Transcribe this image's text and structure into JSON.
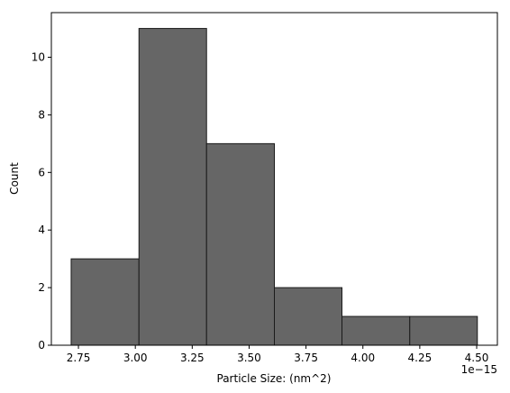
{
  "chart_data": {
    "type": "histogram",
    "x_label": "Particle Size: (nm^2)",
    "y_label": "Count",
    "x_offset_text": "1e−15",
    "bins": [
      2.718,
      3.016,
      3.313,
      3.611,
      3.908,
      4.206,
      4.503
    ],
    "values": [
      3,
      11,
      7,
      2,
      1,
      1
    ],
    "color": "#666666",
    "edge_color": "#1a1a1a",
    "xlim": [
      2.631,
      4.591
    ],
    "ylim": [
      0,
      11.55
    ],
    "xticks": [
      2.75,
      {
        "value": 3,
        "label": "3.00"
      },
      3.25,
      {
        "value": 3.5,
        "label": "3.50"
      },
      3.75,
      {
        "value": 4,
        "label": "4.00"
      },
      4.25,
      {
        "value": 4.5,
        "label": "4.50"
      }
    ],
    "yticks": [
      0,
      2,
      4,
      6,
      8,
      10
    ]
  }
}
